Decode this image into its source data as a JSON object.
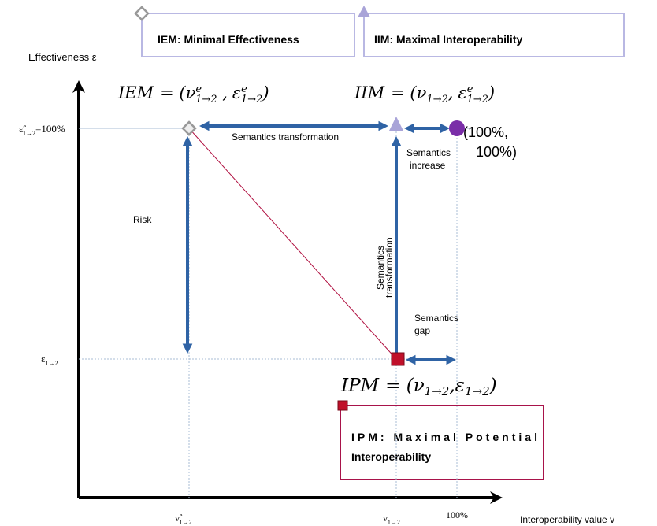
{
  "legend": [
    {
      "text": "IEM: Minimal Effectiveness"
    },
    {
      "text": "IIM: Maximal Interoperability"
    },
    {
      "lines": [
        "IPM: Maximal Potential",
        "Interoperability"
      ]
    }
  ],
  "axes": {
    "y_label": "Effectiveness ε",
    "x_label": "Interoperability value v"
  },
  "y_ticks": [
    {
      "symbol": "ε",
      "sup": "e",
      "sub": "1→2",
      "suffix": "=100%"
    },
    {
      "symbol": "ε",
      "sub": "1→2"
    }
  ],
  "x_ticks": [
    {
      "symbol": "ν",
      "sup": "e",
      "sub": "1→2"
    },
    {
      "symbol": "ν",
      "sub": "1→2"
    },
    {
      "text": "100%"
    }
  ],
  "points": [
    {
      "name": "IEM",
      "eq": "= (",
      "x": "ν",
      "x_sup": "e",
      "x_sub": "1→2",
      "sep": " ,",
      "y": "ε",
      "y_sup": "e",
      "y_sub": "1→2",
      "close": ")"
    },
    {
      "name": "IIM",
      "eq": "= (",
      "x": "ν",
      "x_sub": "1→2",
      "sep": ",",
      "y": "ε",
      "y_sup": "e",
      "y_sub": "1→2",
      "close": ")"
    },
    {
      "name": "IPM",
      "eq": "= (",
      "x": "ν",
      "x_sub": "1→2",
      "sep": ",",
      "y": "ε",
      "y_sub": "1→2",
      "close": ")"
    }
  ],
  "corner_point": {
    "lines": [
      "(100%,",
      "100%)"
    ]
  },
  "arrow_labels": {
    "top": "Semantics transformation",
    "increase": [
      "Semantics",
      "increase"
    ],
    "risk": "Risk",
    "vertical": [
      "Semantics",
      "transformation"
    ],
    "gap": [
      "Semantics",
      "gap"
    ]
  }
}
